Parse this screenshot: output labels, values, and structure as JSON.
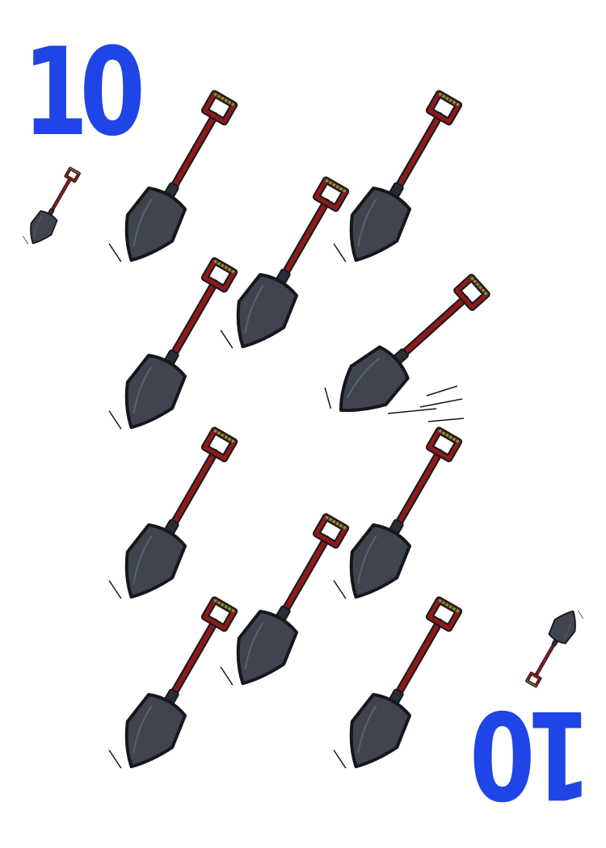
{
  "card": {
    "rank_top": "10",
    "rank_bottom": "10",
    "suit": "shovel-icon",
    "pip_count": 10,
    "colors": {
      "rank": "#1f45e6",
      "blade": "#3f4450",
      "blade_outline": "#15171c",
      "handle": "#8c1a1a",
      "grip_accent": "#3fbf4a"
    }
  }
}
